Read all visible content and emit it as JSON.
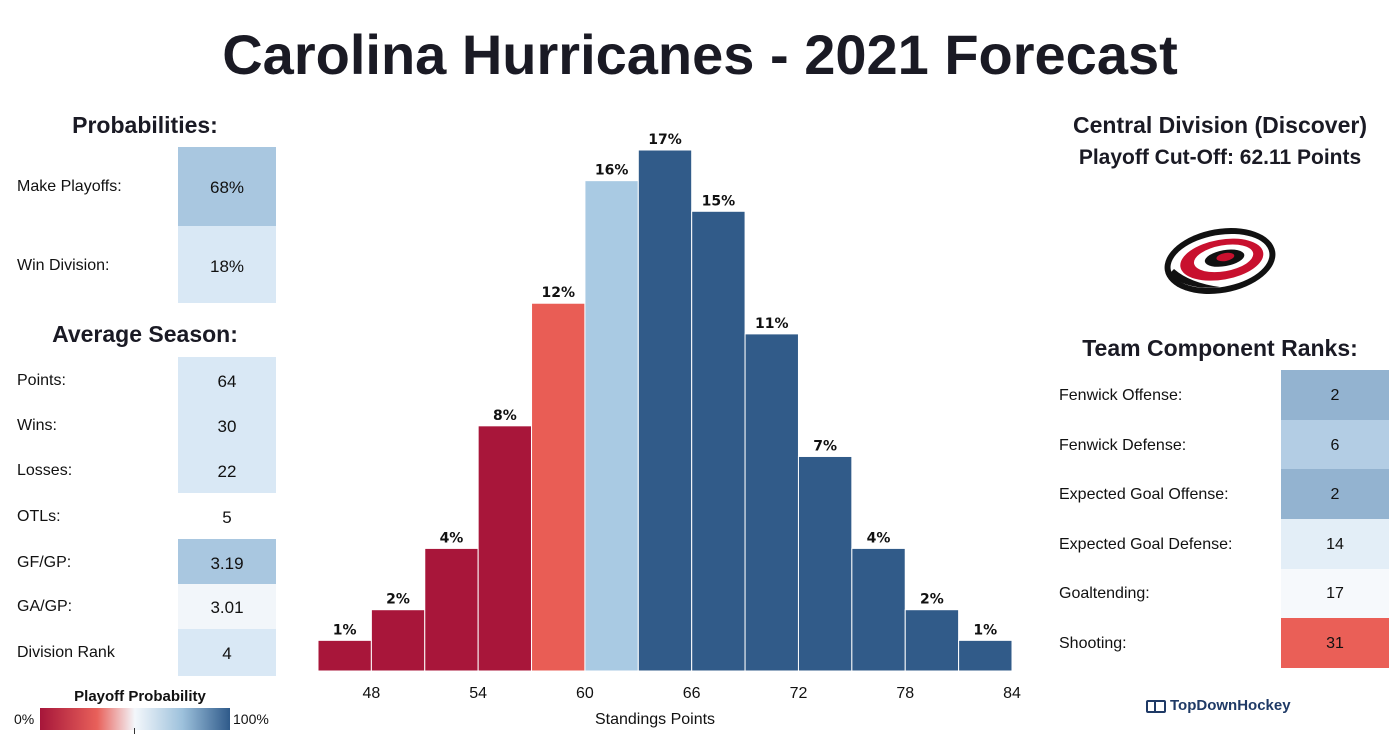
{
  "title": "Carolina Hurricanes - 2021 Forecast",
  "probabilities": {
    "heading": "Probabilities:",
    "rows": [
      {
        "label": "Make Playoffs:",
        "value": "68%",
        "color": "#a9c7e0"
      },
      {
        "label": "Win Division:",
        "value": "18%",
        "color": "#d9e8f5"
      }
    ]
  },
  "average_season": {
    "heading": "Average Season:",
    "rows": [
      {
        "label": "Points:",
        "value": "64",
        "color": "#d9e8f5"
      },
      {
        "label": "Wins:",
        "value": "30",
        "color": "#d9e8f5"
      },
      {
        "label": "Losses:",
        "value": "22",
        "color": "#d9e8f5"
      },
      {
        "label": "OTLs:",
        "value": "5",
        "color": "#ffffff"
      },
      {
        "label": "GF/GP:",
        "value": "3.19",
        "color": "#a9c7e0"
      },
      {
        "label": "GA/GP:",
        "value": "3.01",
        "color": "#f2f6fa"
      },
      {
        "label": "Division Rank",
        "value": "4",
        "color": "#d9e8f5"
      }
    ]
  },
  "legend": {
    "title": "Playoff Probability",
    "min": "0%",
    "max": "100%"
  },
  "division": {
    "name": "Central Division (Discover)",
    "cutoff": "Playoff Cut-Off: 62.11 Points"
  },
  "ranks": {
    "heading": "Team Component Ranks:",
    "rows": [
      {
        "label": "Fenwick Offense:",
        "value": "2",
        "color": "#93b3d0"
      },
      {
        "label": "Fenwick Defense:",
        "value": "6",
        "color": "#b3cde4"
      },
      {
        "label": "Expected Goal Offense:",
        "value": "2",
        "color": "#93b3d0"
      },
      {
        "label": "Expected Goal Defense:",
        "value": "14",
        "color": "#e3eef7"
      },
      {
        "label": "Goaltending:",
        "value": "17",
        "color": "#f6f9fc"
      },
      {
        "label": "Shooting:",
        "value": "31",
        "color": "#ea5f57"
      }
    ]
  },
  "brand": "TopDownHockey",
  "chart_data": {
    "type": "bar",
    "title": "",
    "xlabel": "Standings Points",
    "ylabel": "",
    "x_ticks": [
      48,
      54,
      60,
      66,
      72,
      78,
      84
    ],
    "xlim": [
      45,
      84
    ],
    "ylim": [
      0,
      17
    ],
    "bins": [
      {
        "start": 45,
        "end": 48,
        "value": 1,
        "label": "1%",
        "color": "#a8163a"
      },
      {
        "start": 48,
        "end": 51,
        "value": 2,
        "label": "2%",
        "color": "#a8163a"
      },
      {
        "start": 51,
        "end": 54,
        "value": 4,
        "label": "4%",
        "color": "#a8163a"
      },
      {
        "start": 54,
        "end": 57,
        "value": 8,
        "label": "8%",
        "color": "#a8163a"
      },
      {
        "start": 57,
        "end": 60,
        "value": 12,
        "label": "12%",
        "color": "#e95d55"
      },
      {
        "start": 60,
        "end": 63,
        "value": 16,
        "label": "16%",
        "color": "#a9cae3"
      },
      {
        "start": 63,
        "end": 66,
        "value": 17,
        "label": "17%",
        "color": "#315b89"
      },
      {
        "start": 66,
        "end": 69,
        "value": 15,
        "label": "15%",
        "color": "#315b89"
      },
      {
        "start": 69,
        "end": 72,
        "value": 11,
        "label": "11%",
        "color": "#315b89"
      },
      {
        "start": 72,
        "end": 75,
        "value": 7,
        "label": "7%",
        "color": "#315b89"
      },
      {
        "start": 75,
        "end": 78,
        "value": 4,
        "label": "4%",
        "color": "#315b89"
      },
      {
        "start": 78,
        "end": 81,
        "value": 2,
        "label": "2%",
        "color": "#315b89"
      },
      {
        "start": 81,
        "end": 84,
        "value": 1,
        "label": "1%",
        "color": "#315b89"
      }
    ]
  }
}
